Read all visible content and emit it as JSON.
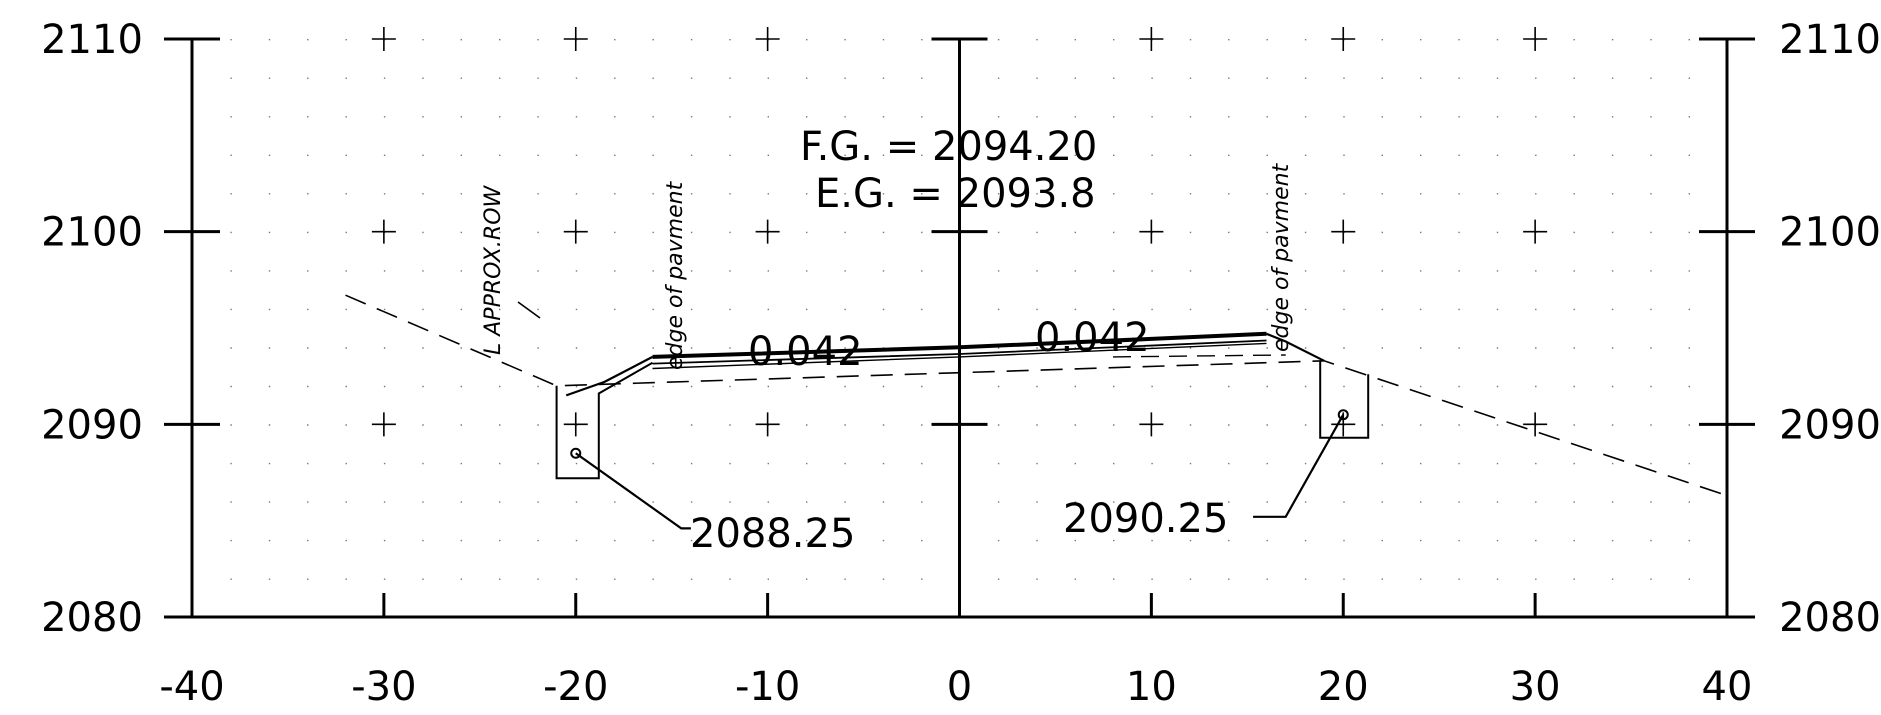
{
  "chart_data": {
    "type": "diagram",
    "xlim": [
      -40,
      40
    ],
    "ylim": [
      2080,
      2110
    ],
    "x_ticks": [
      "-40",
      "-30",
      "-20",
      "-10",
      "0",
      "10",
      "20",
      "30",
      "40"
    ],
    "y_ticks": [
      "2110",
      "2100",
      "2090",
      "2080"
    ],
    "annotations": {
      "fg": "F.G.  =  2094.20",
      "eg": "E.G. = 2093.8",
      "slope_left": "0.042",
      "slope_right": "0.042",
      "row": "L APPROX.ROW",
      "edge_left": "edge of pavment",
      "edge_right": "edge of pavment",
      "elev_left": "2088.25",
      "elev_right": "2090.25"
    },
    "existing_ground": [
      [
        -32,
        2096.7
      ],
      [
        -21,
        2092.0
      ],
      [
        19,
        2093.3
      ],
      [
        40,
        2086.3
      ]
    ],
    "pavement_top": [
      [
        -16,
        2093.5
      ],
      [
        0,
        2094.0
      ],
      [
        16,
        2094.7
      ]
    ],
    "ditch_left": [
      [
        -20.5,
        2091.5
      ],
      [
        -18.5,
        2092.2
      ],
      [
        -16,
        2093.5
      ]
    ],
    "ditch_right": [
      [
        16,
        2094.7
      ],
      [
        17,
        2094.3
      ],
      [
        19,
        2093.3
      ]
    ],
    "culvert_left_point": [
      -20,
      2088.5
    ],
    "culvert_right_point": [
      20,
      2090.5
    ]
  }
}
